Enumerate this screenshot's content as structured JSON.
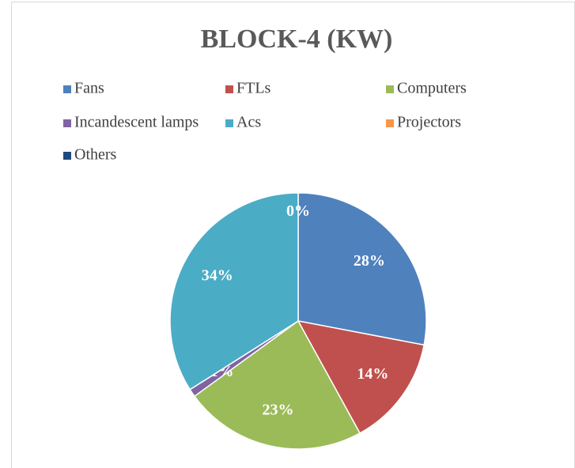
{
  "chart_data": {
    "type": "pie",
    "title": "BLOCK-4 (KW)",
    "categories": [
      "Fans",
      "FTLs",
      "Computers",
      "Incandescent lamps",
      "Acs",
      "Projectors",
      "Others"
    ],
    "values": [
      28,
      14,
      23,
      1,
      34,
      0,
      0
    ],
    "value_labels": [
      "28%",
      "14%",
      "23%",
      "1%",
      "34%",
      "0%",
      null
    ],
    "colors": [
      "#4f81bd",
      "#c0504d",
      "#9bbb59",
      "#8064a2",
      "#4bacc6",
      "#f79646",
      "#1f497d"
    ],
    "legend": "top"
  }
}
